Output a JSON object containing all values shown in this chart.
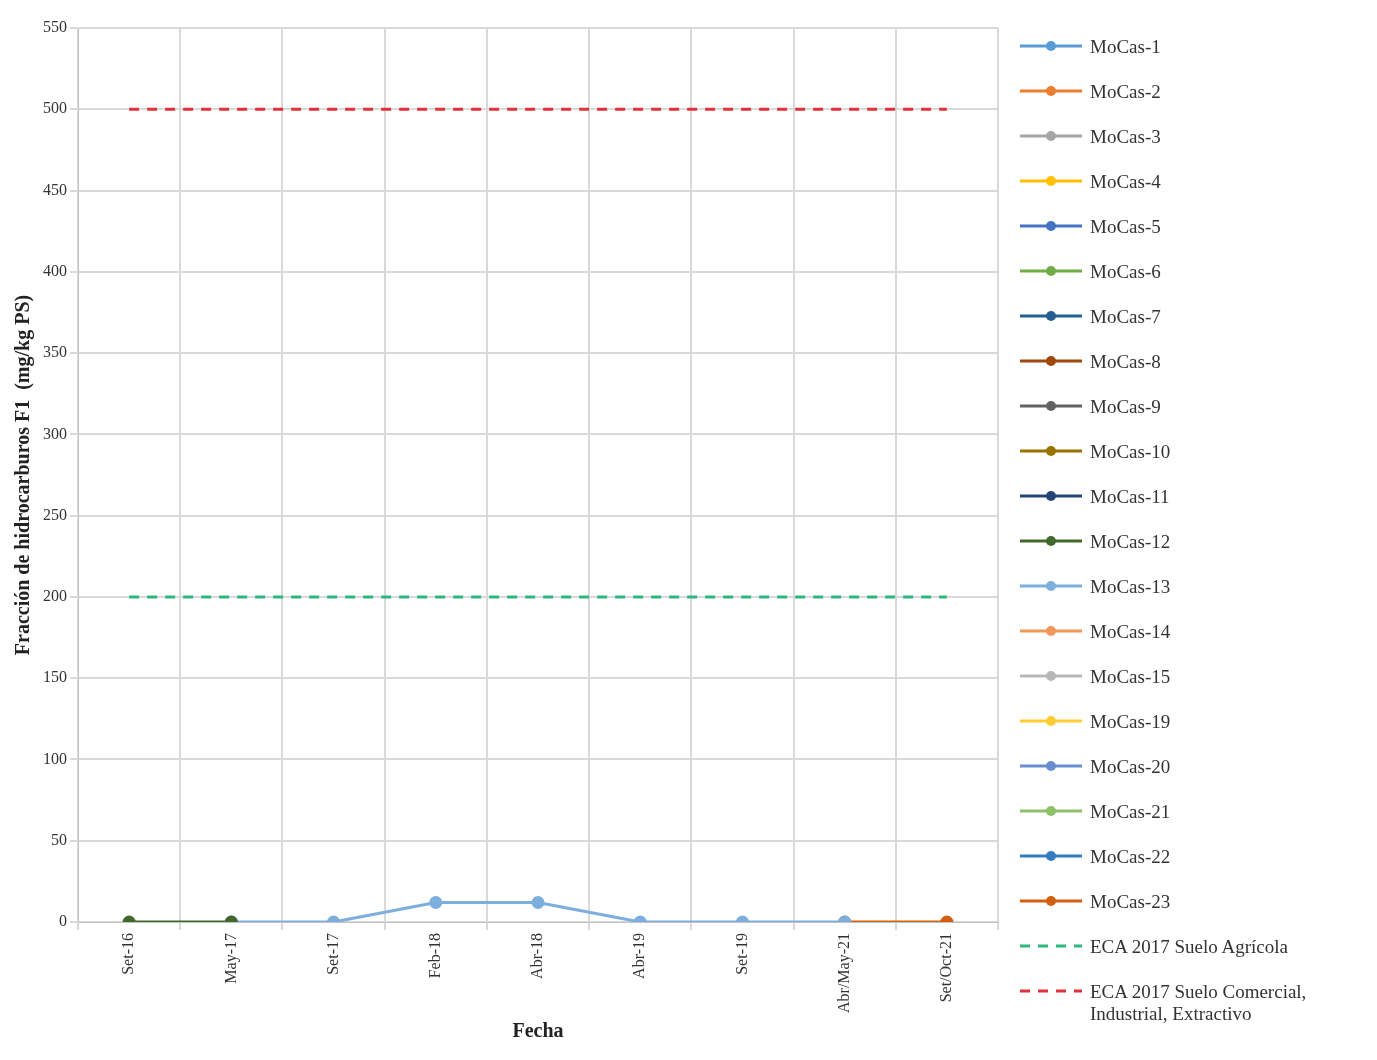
{
  "chart_data": {
    "type": "line",
    "xlabel": "Fecha",
    "ylabel": "Fracción de hidrocarburos F1  (mg/kg PS)",
    "categories": [
      "Set-16",
      "May-17",
      "Set-17",
      "Feb-18",
      "Abr-18",
      "Abr-19",
      "Set-19",
      "Abr/May-21",
      "Set/Oct-21"
    ],
    "ylim": [
      0,
      550
    ],
    "yticks": [
      0,
      50,
      100,
      150,
      200,
      250,
      300,
      350,
      400,
      450,
      500,
      550
    ],
    "grid": true,
    "legend": "right",
    "marker": "circle",
    "line_style": "solid",
    "series": [
      {
        "name": "MoCas-1",
        "color": "#5b9bd5",
        "values": [
          null,
          null,
          null,
          null,
          null,
          null,
          null,
          null,
          null
        ]
      },
      {
        "name": "MoCas-2",
        "color": "#ed7d31",
        "values": [
          null,
          null,
          null,
          null,
          null,
          null,
          null,
          null,
          null
        ]
      },
      {
        "name": "MoCas-3",
        "color": "#a5a5a5",
        "values": [
          null,
          null,
          null,
          null,
          null,
          null,
          null,
          null,
          null
        ]
      },
      {
        "name": "MoCas-4",
        "color": "#ffc000",
        "values": [
          null,
          null,
          null,
          null,
          null,
          null,
          null,
          null,
          null
        ]
      },
      {
        "name": "MoCas-5",
        "color": "#4472c4",
        "values": [
          null,
          null,
          null,
          null,
          null,
          null,
          null,
          null,
          null
        ]
      },
      {
        "name": "MoCas-6",
        "color": "#70ad47",
        "values": [
          null,
          null,
          null,
          null,
          null,
          null,
          null,
          null,
          null
        ]
      },
      {
        "name": "MoCas-7",
        "color": "#255e91",
        "values": [
          null,
          null,
          null,
          null,
          null,
          null,
          null,
          null,
          null
        ]
      },
      {
        "name": "MoCas-8",
        "color": "#9e480e",
        "values": [
          null,
          null,
          null,
          null,
          null,
          null,
          null,
          null,
          null
        ]
      },
      {
        "name": "MoCas-9",
        "color": "#636363",
        "values": [
          null,
          null,
          null,
          null,
          null,
          null,
          null,
          null,
          null
        ]
      },
      {
        "name": "MoCas-10",
        "color": "#997300",
        "values": [
          null,
          null,
          null,
          null,
          null,
          null,
          null,
          null,
          null
        ]
      },
      {
        "name": "MoCas-11",
        "color": "#264478",
        "values": [
          null,
          null,
          null,
          null,
          null,
          null,
          null,
          null,
          null
        ]
      },
      {
        "name": "MoCas-12",
        "color": "#43682b",
        "values": [
          0,
          0,
          null,
          null,
          null,
          null,
          null,
          null,
          null
        ]
      },
      {
        "name": "MoCas-13",
        "color": "#7cafdd",
        "values": [
          null,
          0,
          0,
          12,
          12,
          0,
          0,
          0,
          null
        ]
      },
      {
        "name": "MoCas-14",
        "color": "#f1975a",
        "values": [
          null,
          null,
          null,
          null,
          null,
          null,
          null,
          null,
          null
        ]
      },
      {
        "name": "MoCas-15",
        "color": "#b7b7b7",
        "values": [
          null,
          null,
          null,
          null,
          null,
          null,
          null,
          null,
          null
        ]
      },
      {
        "name": "MoCas-19",
        "color": "#ffcd33",
        "values": [
          null,
          null,
          null,
          null,
          null,
          null,
          null,
          null,
          null
        ]
      },
      {
        "name": "MoCas-20",
        "color": "#698ed0",
        "values": [
          null,
          null,
          null,
          null,
          null,
          null,
          null,
          null,
          null
        ]
      },
      {
        "name": "MoCas-21",
        "color": "#8cc168",
        "values": [
          null,
          null,
          null,
          null,
          null,
          null,
          null,
          null,
          null
        ]
      },
      {
        "name": "MoCas-22",
        "color": "#327dc2",
        "values": [
          null,
          null,
          null,
          null,
          null,
          null,
          null,
          null,
          null
        ]
      },
      {
        "name": "MoCas-23",
        "color": "#d26012",
        "values": [
          null,
          null,
          null,
          null,
          null,
          null,
          null,
          0,
          0
        ]
      }
    ],
    "ref_lines": [
      {
        "axis": "y",
        "value": 200,
        "label": "ECA 2017 Suelo Agrícola",
        "color": "#2eb67d",
        "line_style": "dashed"
      },
      {
        "axis": "y",
        "value": 500,
        "label": "ECA 2017 Suelo Comercial, Industrial, Extractivo",
        "color": "#e0303a",
        "line_style": "dashed"
      }
    ]
  }
}
